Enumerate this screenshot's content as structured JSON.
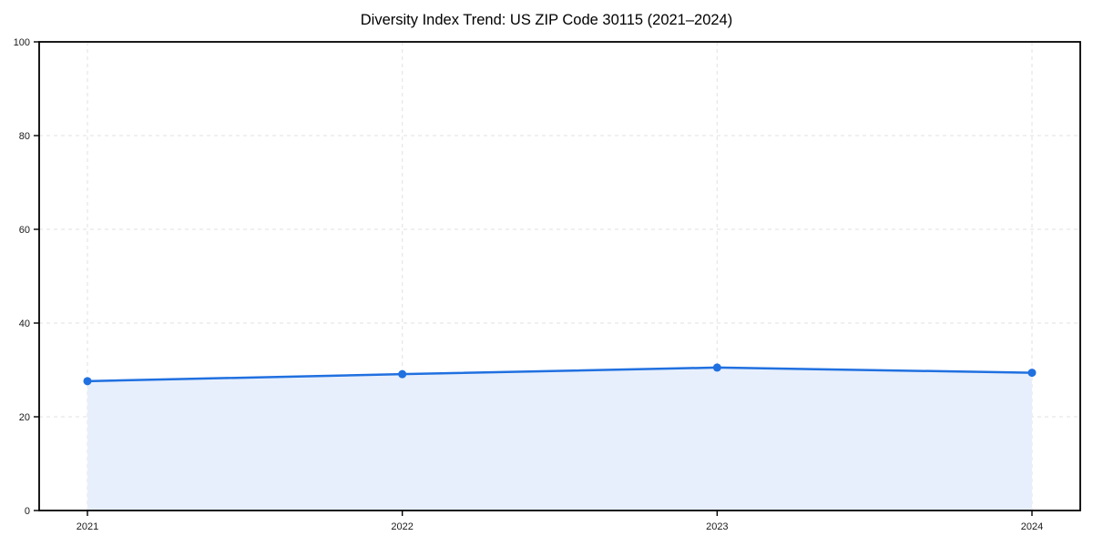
{
  "chart_data": {
    "type": "area",
    "title": "Diversity Index Trend: US ZIP Code 30115 (2021–2024)",
    "categories": [
      "2021",
      "2022",
      "2023",
      "2024"
    ],
    "series": [
      {
        "name": "Diversity Index",
        "values": [
          27.6,
          29.1,
          30.5,
          29.4
        ]
      }
    ],
    "xlabel": "",
    "ylabel": "",
    "ylim": [
      0,
      100
    ],
    "yticks": [
      0,
      20,
      40,
      60,
      80,
      100
    ],
    "grid": true,
    "grid_style": "dashed",
    "legend": false,
    "marker": "circle",
    "colors": {
      "line": "#2070e0",
      "marker": "#2070e0",
      "fill": "#e7effc",
      "grid": "#e7e7e7",
      "spine": "#000000",
      "tick_label": "#1a1a1a",
      "background": "#ffffff"
    }
  }
}
